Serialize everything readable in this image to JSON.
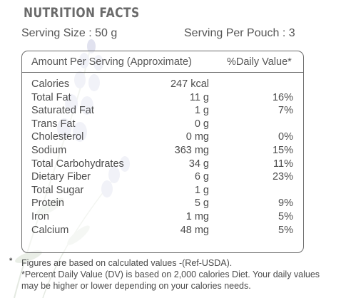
{
  "header": {
    "title": "Nutrition Facts",
    "serving_size": "Serving Size : 50 g",
    "serving_per_pouch": "Serving Per Pouch : 3"
  },
  "table": {
    "col_amount": "Amount Per Serving (Approximate)",
    "col_dv": "%Daily Value*",
    "rows": [
      {
        "name": "Calories",
        "amount": "247 kcal",
        "dv": ""
      },
      {
        "name": "Total Fat",
        "amount": "11 g",
        "dv": "16%"
      },
      {
        "name": "Saturated Fat",
        "amount": "1 g",
        "dv": "7%"
      },
      {
        "name": "Trans Fat",
        "amount": "0 g",
        "dv": ""
      },
      {
        "name": "Cholesterol",
        "amount": "0 mg",
        "dv": "0%"
      },
      {
        "name": "Sodium",
        "amount": "363 mg",
        "dv": "15%"
      },
      {
        "name": "Total Carbohydrates",
        "amount": "34 g",
        "dv": "11%"
      },
      {
        "name": "Dietary Fiber",
        "amount": "6 g",
        "dv": "23%"
      },
      {
        "name": "Total Sugar",
        "amount": "1 g",
        "dv": ""
      },
      {
        "name": "Protein",
        "amount": "5 g",
        "dv": "9%"
      },
      {
        "name": "Iron",
        "amount": "1 mg",
        "dv": "5%"
      },
      {
        "name": "Calcium",
        "amount": "48 mg",
        "dv": "5%"
      }
    ]
  },
  "footnote": {
    "marker": "*",
    "line1": "Figures are based on calculated values -(Ref-USDA).",
    "line2": "*Percent Daily Value (DV) is based on 2,000 calories Diet. Your daily values may be higher or lower depending on your calories needs."
  },
  "colors": {
    "text": "#4a4a4a",
    "border": "#6b6b6b",
    "decor": "#7a7fb8"
  }
}
